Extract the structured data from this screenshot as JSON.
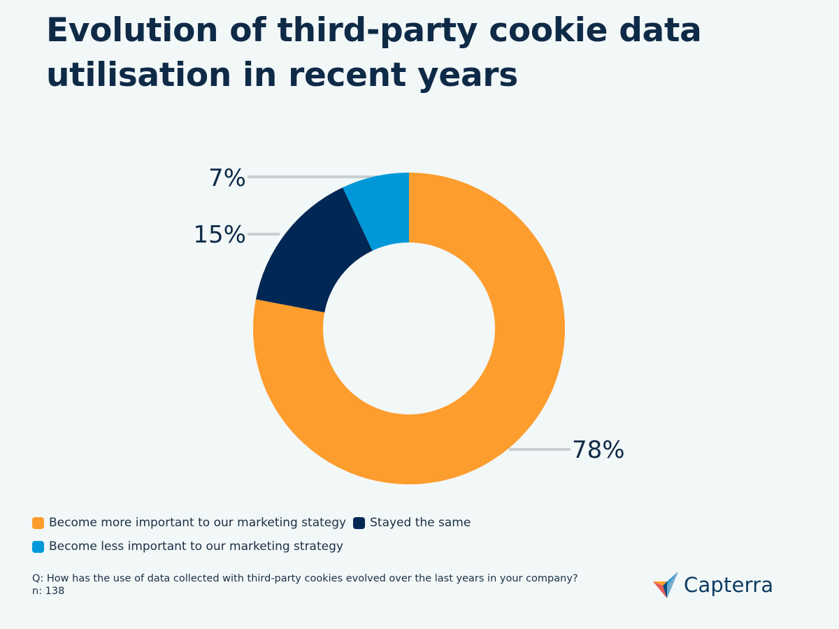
{
  "title": "Evolution of third-party cookie data utilisation in recent years",
  "chart_data": {
    "type": "pie",
    "subtype": "donut",
    "categories": [
      "Become more important to our marketing stategy",
      "Stayed the same",
      "Become less important to our marketing strategy"
    ],
    "values": [
      78,
      15,
      7
    ],
    "labels": [
      "78%",
      "15%",
      "7%"
    ],
    "colors": [
      "#fd9d2e",
      "#012754",
      "#0098d8"
    ],
    "legend_position": "bottom-left"
  },
  "legend": {
    "rows": [
      [
        {
          "label": "Become more important to our marketing stategy",
          "color": "#fd9d2e"
        },
        {
          "label": "Stayed the same",
          "color": "#012754"
        }
      ],
      [
        {
          "label": "Become less important to our marketing strategy",
          "color": "#0098d8"
        }
      ]
    ]
  },
  "footnote": {
    "question": "Q: How has the use of data collected with third-party cookies evolved over the last years in your company?",
    "sample": "n: 138"
  },
  "brand": {
    "name": "Capterra",
    "icon": "capterra-logo-icon"
  }
}
